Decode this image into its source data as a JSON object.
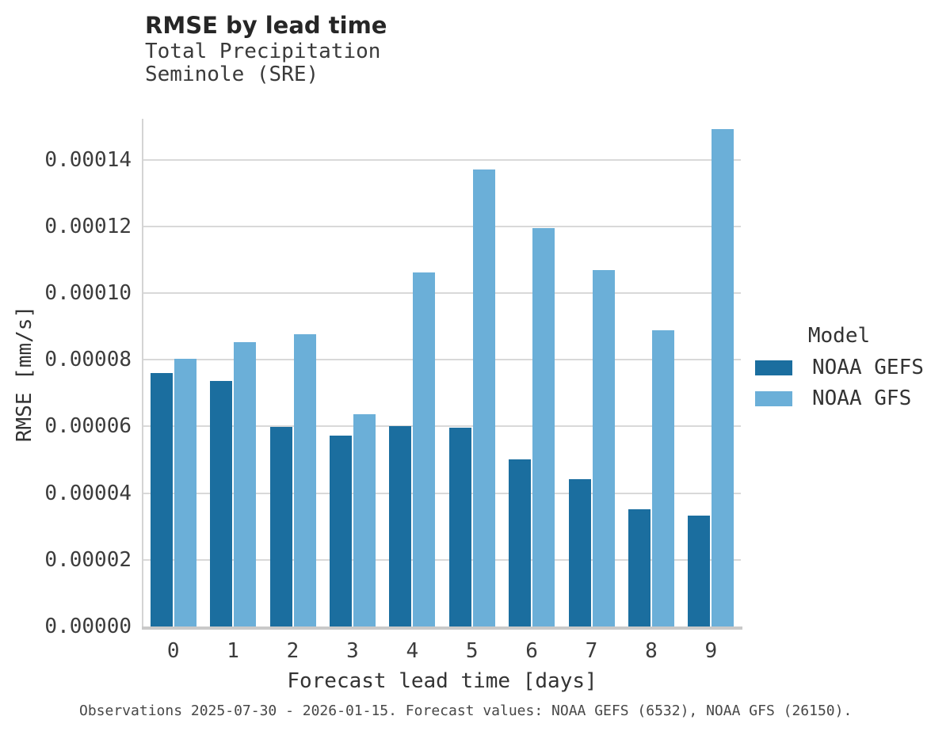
{
  "header": {
    "title": "RMSE by lead time",
    "subtitle_line1": "Total Precipitation",
    "subtitle_line2": "Seminole (SRE)"
  },
  "legend": {
    "title": "Model",
    "items": [
      {
        "label": "NOAA GEFS",
        "color": "#1b6e9f"
      },
      {
        "label": "NOAA GFS",
        "color": "#6bafd8"
      }
    ]
  },
  "footer": {
    "caption": "Observations 2025-07-30 - 2026-01-15. Forecast values: NOAA GEFS (6532), NOAA GFS (26150)."
  },
  "chart_data": {
    "type": "bar",
    "title": "RMSE by lead time",
    "subtitle": [
      "Total Precipitation",
      "Seminole (SRE)"
    ],
    "categories": [
      0,
      1,
      2,
      3,
      4,
      5,
      6,
      7,
      8,
      9
    ],
    "series": [
      {
        "name": "NOAA GEFS",
        "color": "#1b6e9f",
        "values": [
          7.6e-05,
          7.37e-05,
          5.99e-05,
          5.73e-05,
          6.01e-05,
          5.96e-05,
          5.01e-05,
          4.43e-05,
          3.51e-05,
          3.32e-05
        ]
      },
      {
        "name": "NOAA GFS",
        "color": "#6bafd8",
        "values": [
          8.03e-05,
          8.53e-05,
          8.76e-05,
          6.36e-05,
          0.0001061,
          0.0001372,
          0.0001194,
          0.0001069,
          8.89e-05,
          0.0001493
        ]
      }
    ],
    "xlabel": "Forecast lead time [days]",
    "ylabel": "RMSE [mm/s]",
    "ylim": [
      0,
      0.0001523
    ],
    "ytick_step": 2e-05,
    "ytick_max": 0.00014,
    "ytick_decimals": 5,
    "grid": "horizontal",
    "legend_position": "right",
    "legend_title": "Model"
  }
}
